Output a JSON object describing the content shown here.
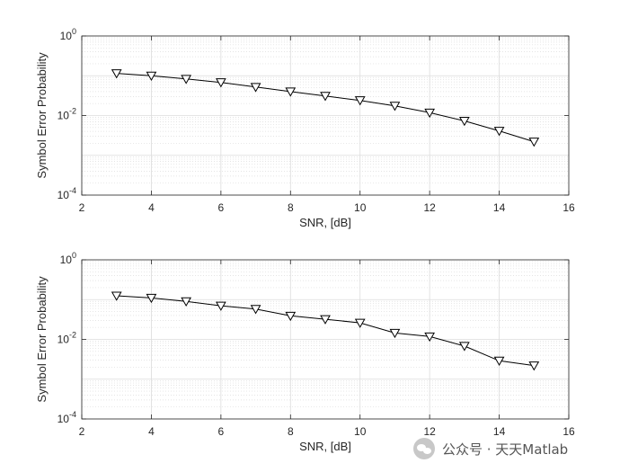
{
  "chart_data": [
    {
      "type": "line",
      "xlabel": "SNR, [dB]",
      "ylabel": "Symbol Error Probability",
      "xlim": [
        2,
        16
      ],
      "ylim": [
        0.0001,
        1
      ],
      "yscale": "log",
      "grid": true,
      "marker": "triangle-down",
      "color": "#000000",
      "x_ticks": [
        "2",
        "4",
        "6",
        "8",
        "10",
        "12",
        "14",
        "16"
      ],
      "y_ticks": [
        {
          "base": "10",
          "exp": "-4"
        },
        {
          "base": "10",
          "exp": "-2"
        },
        {
          "base": "10",
          "exp": "0"
        }
      ],
      "x": [
        3,
        4,
        5,
        6,
        7,
        8,
        9,
        10,
        11,
        12,
        13,
        14,
        15
      ],
      "y": [
        0.115,
        0.1,
        0.083,
        0.068,
        0.052,
        0.04,
        0.031,
        0.024,
        0.0175,
        0.0118,
        0.0073,
        0.0041,
        0.0022
      ]
    },
    {
      "type": "line",
      "xlabel": "SNR, [dB]",
      "ylabel": "Symbol Error Probability",
      "xlim": [
        2,
        16
      ],
      "ylim": [
        0.0001,
        1
      ],
      "yscale": "log",
      "grid": true,
      "marker": "triangle-down",
      "color": "#000000",
      "x_ticks": [
        "2",
        "4",
        "6",
        "8",
        "10",
        "12",
        "14",
        "16"
      ],
      "y_ticks": [
        {
          "base": "10",
          "exp": "-4"
        },
        {
          "base": "10",
          "exp": "-2"
        },
        {
          "base": "10",
          "exp": "0"
        }
      ],
      "x": [
        3,
        4,
        5,
        6,
        7,
        8,
        9,
        10,
        11,
        12,
        13,
        14,
        15
      ],
      "y": [
        0.125,
        0.11,
        0.09,
        0.07,
        0.058,
        0.039,
        0.032,
        0.026,
        0.0145,
        0.0118,
        0.0068,
        0.0029,
        0.0022
      ]
    }
  ],
  "watermark": {
    "text": "公众号 · 天天Matlab",
    "icon": "wechat-icon"
  }
}
